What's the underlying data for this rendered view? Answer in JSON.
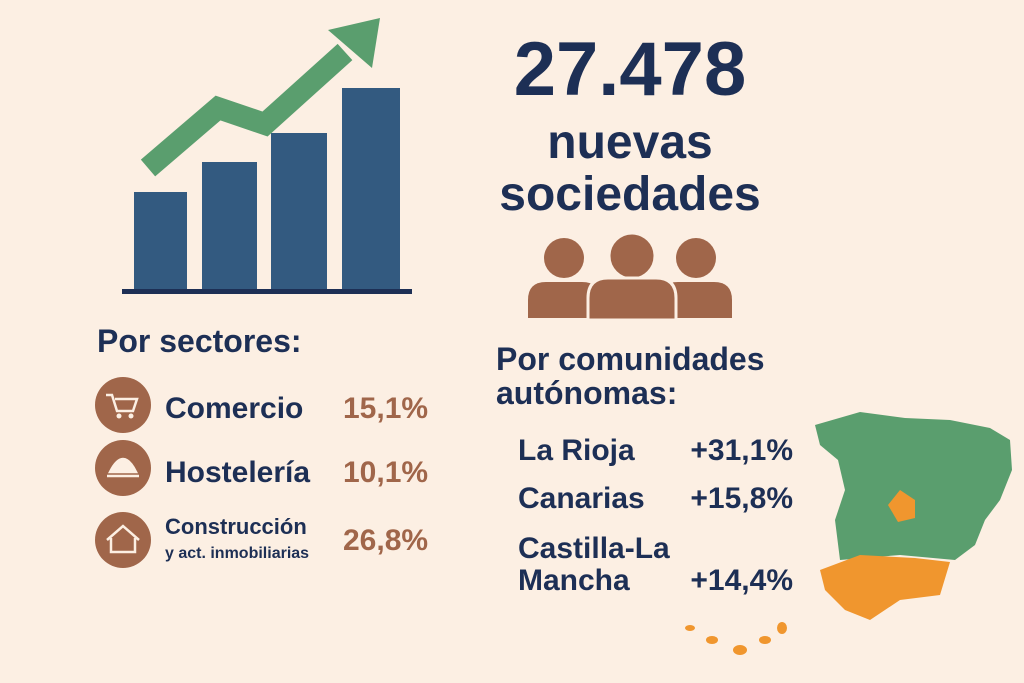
{
  "headline": {
    "number": "27.478",
    "lines": [
      "nuevas",
      "sociedades"
    ]
  },
  "sectors": {
    "title": "Por sectores:",
    "items": [
      {
        "lines": [
          "Comercio"
        ],
        "value": "15,1%"
      },
      {
        "lines": [
          "Hostelería"
        ],
        "value": "10,1%"
      },
      {
        "lines": [
          "Construcción",
          "y act. inmobiliarias"
        ],
        "value": "26,8%"
      }
    ]
  },
  "regions": {
    "title_lines": [
      "Por comunidades",
      "autónomas:"
    ],
    "items": [
      {
        "lines": [
          "La Rioja"
        ],
        "value": "+31,1%"
      },
      {
        "lines": [
          "Canarias"
        ],
        "value": "+15,8%"
      },
      {
        "lines": [
          "Castilla-La",
          "Mancha"
        ],
        "value": "+14,4%"
      }
    ]
  }
}
